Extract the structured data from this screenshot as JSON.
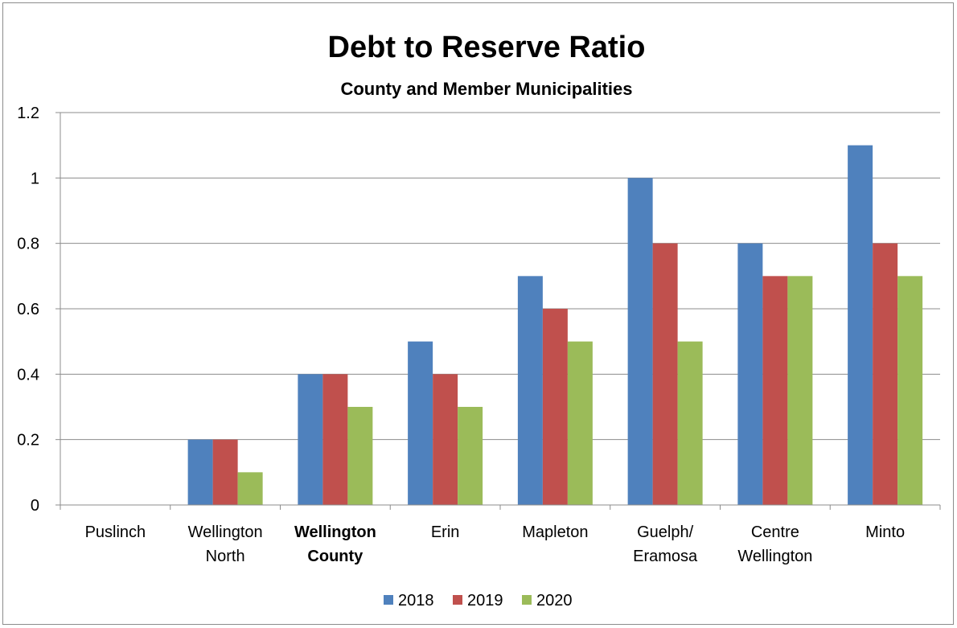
{
  "chart_data": {
    "type": "bar",
    "title": "Debt to Reserve Ratio",
    "subtitle": "County and Member Municipalities",
    "xlabel": "",
    "ylabel": "",
    "ylim": [
      0,
      1.2
    ],
    "yticks": [
      "0",
      "0.2",
      "0.4",
      "0.6",
      "0.8",
      "1",
      "1.2"
    ],
    "grid": true,
    "legend_position": "bottom",
    "categories": [
      {
        "lines": [
          "Puslinch"
        ],
        "bold": false
      },
      {
        "lines": [
          "Wellington",
          "North"
        ],
        "bold": false
      },
      {
        "lines": [
          "Wellington",
          "County"
        ],
        "bold": true
      },
      {
        "lines": [
          "Erin"
        ],
        "bold": false
      },
      {
        "lines": [
          "Mapleton"
        ],
        "bold": false
      },
      {
        "lines": [
          "Guelph/",
          "Eramosa"
        ],
        "bold": false
      },
      {
        "lines": [
          "Centre",
          "Wellington"
        ],
        "bold": false
      },
      {
        "lines": [
          "Minto"
        ],
        "bold": false
      }
    ],
    "series": [
      {
        "name": "2018",
        "color": "#4f81bd",
        "values": [
          0,
          0.2,
          0.4,
          0.5,
          0.7,
          1.0,
          0.8,
          1.1
        ]
      },
      {
        "name": "2019",
        "color": "#c0504d",
        "values": [
          0,
          0.2,
          0.4,
          0.4,
          0.6,
          0.8,
          0.7,
          0.8
        ]
      },
      {
        "name": "2020",
        "color": "#9bbb59",
        "values": [
          0,
          0.1,
          0.3,
          0.3,
          0.5,
          0.5,
          0.7,
          0.7
        ]
      }
    ]
  }
}
